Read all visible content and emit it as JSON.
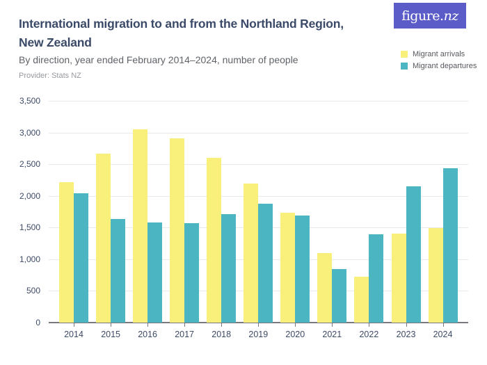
{
  "header": {
    "title_line1": "International migration to and from the Northland Region,",
    "title_line2": "New Zealand",
    "subtitle": "By direction, year ended February 2014–2024, number of people",
    "provider": "Provider: Stats NZ"
  },
  "logo": {
    "text_main": "figure.",
    "text_accent": "nz",
    "bg_color": "#5b5cc8",
    "text_color": "#ffffff"
  },
  "legend": {
    "items": [
      {
        "label": "Migrant arrivals",
        "color": "#f9f07b"
      },
      {
        "label": "Migrant departures",
        "color": "#4cb5c2"
      }
    ]
  },
  "colors": {
    "arrivals": "#f9f07b",
    "departures": "#4cb5c2",
    "gridline": "#e9e9e9",
    "axis": "#75797f",
    "axis_label": "#3d4a66",
    "title": "#3b4a68"
  },
  "chart_data": {
    "type": "bar",
    "title": "International migration to and from the Northland Region, New Zealand",
    "subtitle": "By direction, year ended February 2014–2024, number of people",
    "provider": "Stats NZ",
    "categories": [
      "2014",
      "2015",
      "2016",
      "2017",
      "2018",
      "2019",
      "2020",
      "2021",
      "2022",
      "2023",
      "2024"
    ],
    "series": [
      {
        "name": "Migrant arrivals",
        "color": "#f9f07b",
        "values": [
          2220,
          2670,
          3050,
          2910,
          2600,
          2190,
          1730,
          1100,
          720,
          1410,
          1490
        ]
      },
      {
        "name": "Migrant departures",
        "color": "#4cb5c2",
        "values": [
          2040,
          1640,
          1580,
          1570,
          1710,
          1880,
          1690,
          840,
          1390,
          2150,
          2440
        ]
      }
    ],
    "xlabel": "",
    "ylabel": "number of people",
    "ylim": [
      0,
      3500
    ],
    "ytick_step": 500,
    "ytick_labels": [
      "0",
      "500",
      "1,000",
      "1,500",
      "2,000",
      "2,500",
      "3,000",
      "3,500"
    ],
    "grid": true,
    "legend_position": "top-right"
  }
}
